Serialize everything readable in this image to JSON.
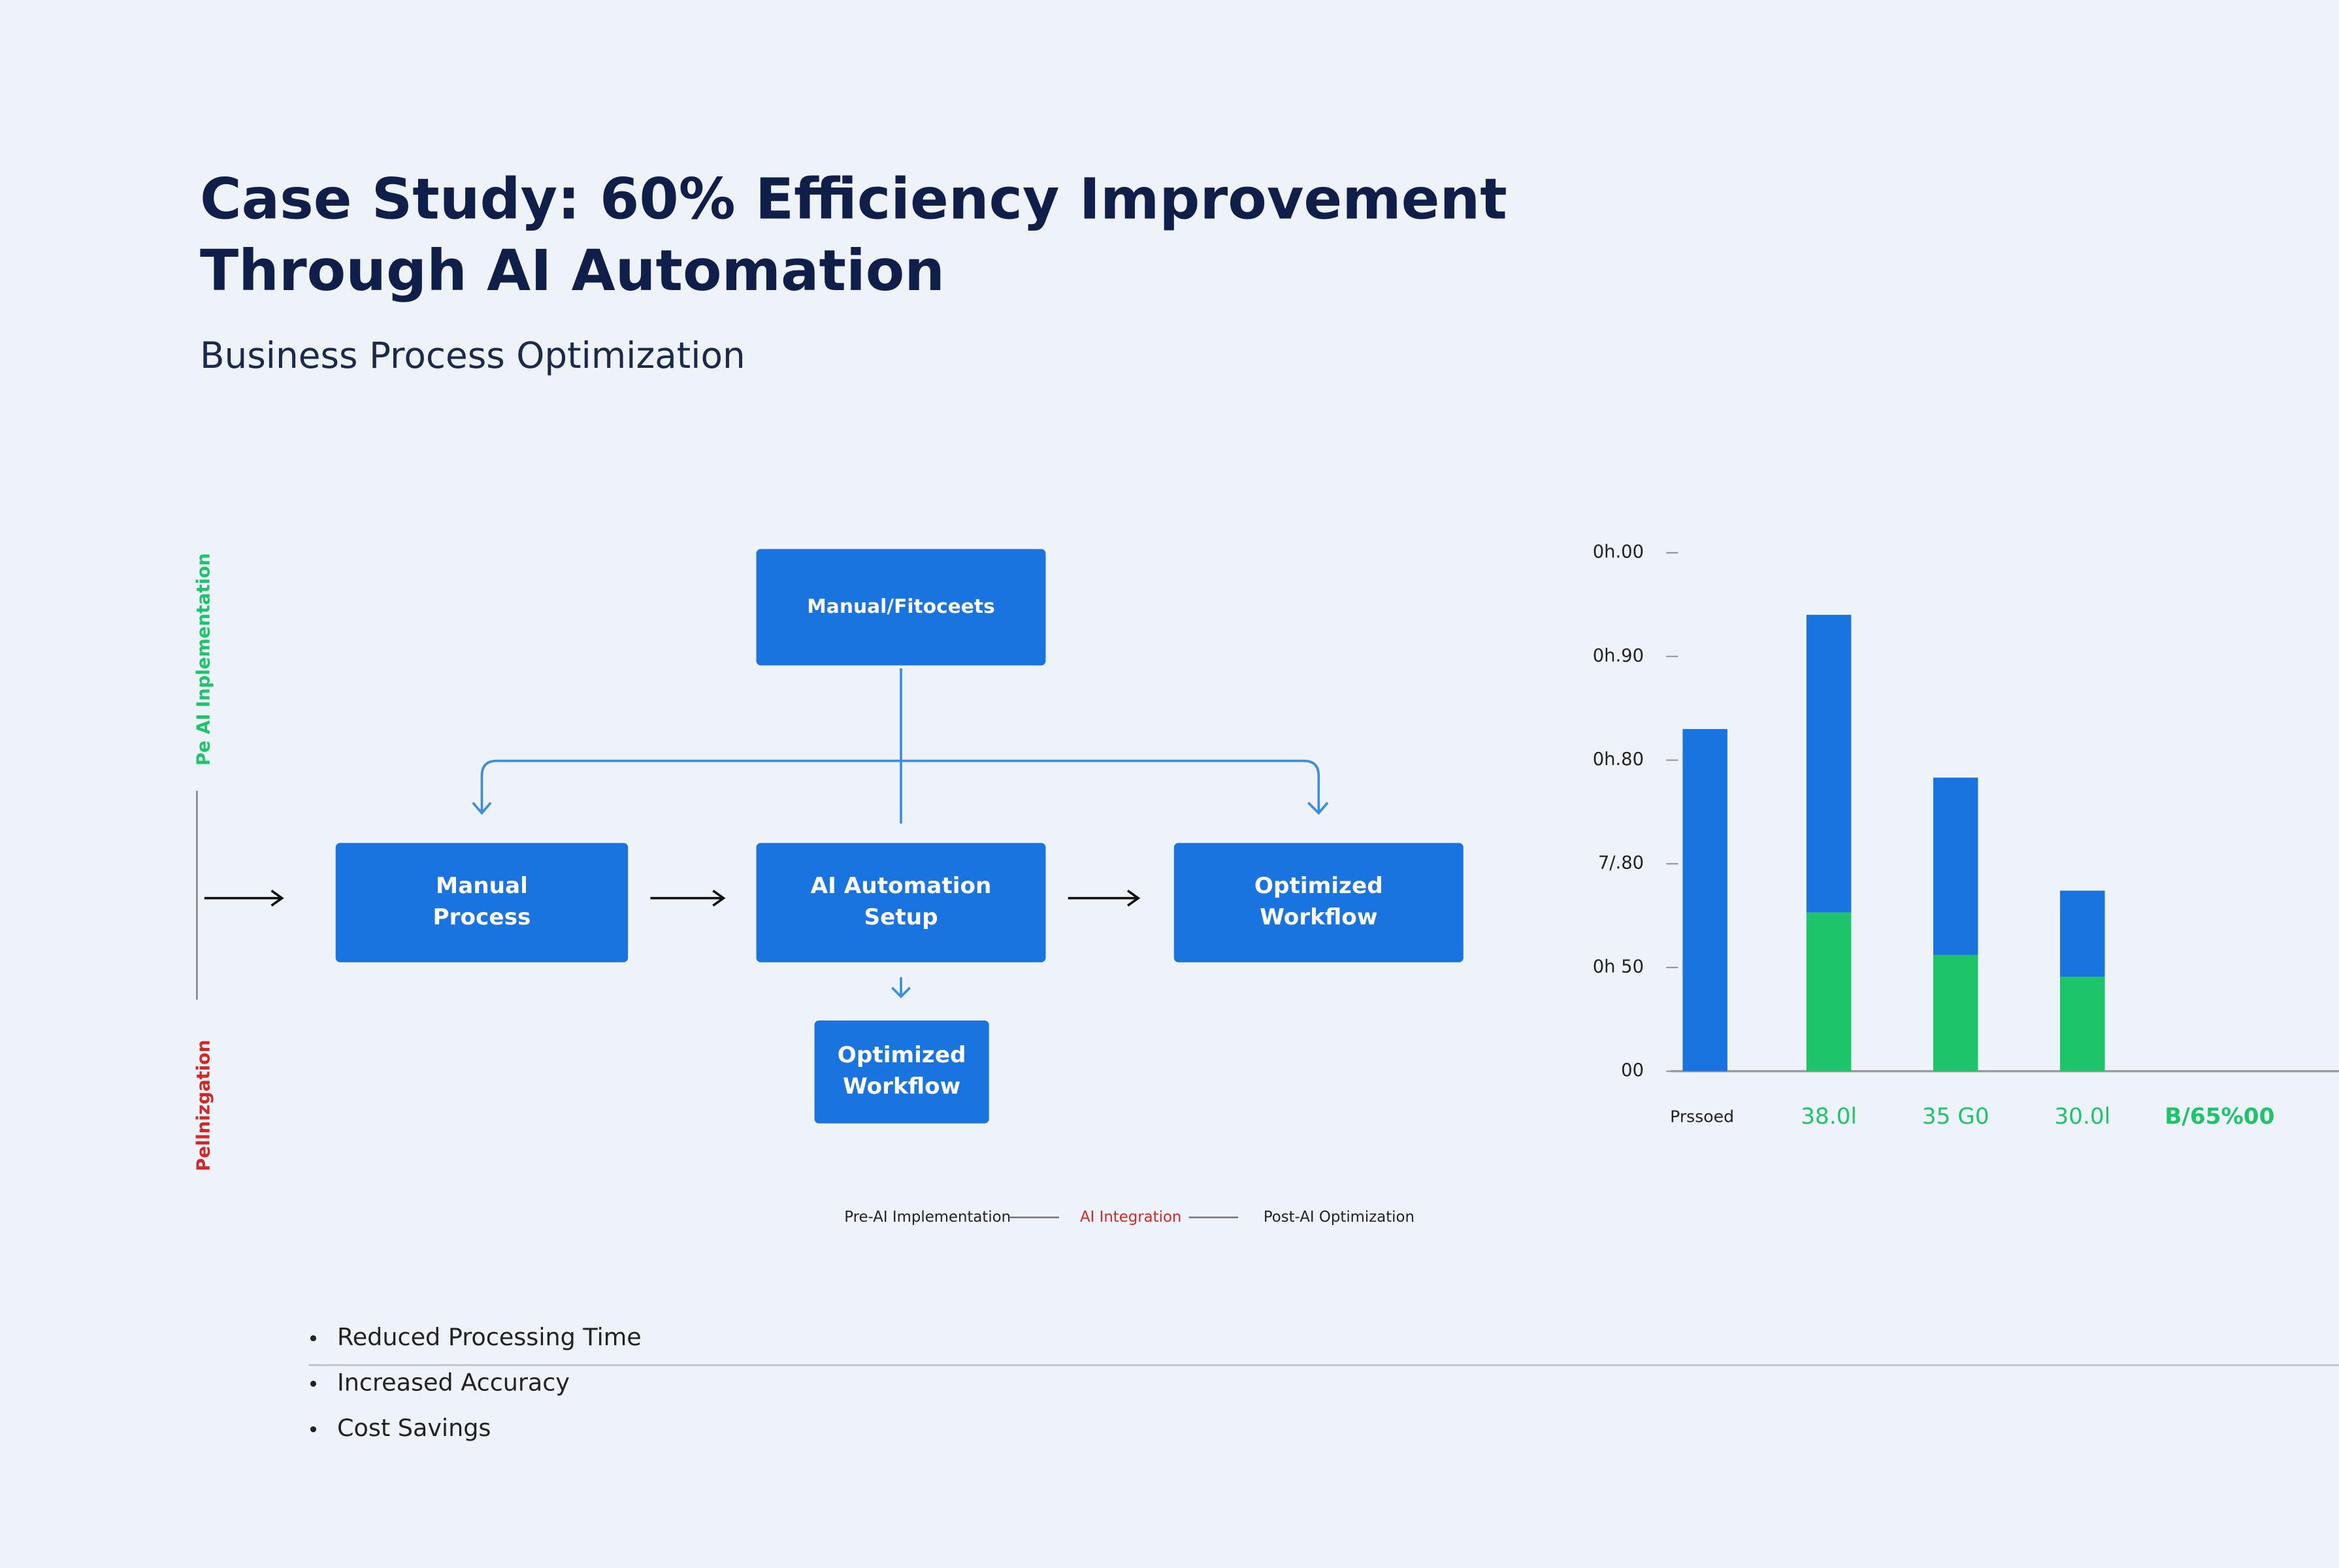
{
  "header": {
    "title_lines": [
      "Case Study: 60% Efficiency Improvement",
      "Through AI Automation"
    ],
    "subtitle": "Business Process Optimization"
  },
  "diagram": {
    "side_labels": [
      "Pe AI Inplementation",
      "Pellnizgation"
    ],
    "nodes": [
      {
        "lines": [
          "Manual/Fitoceets"
        ]
      },
      {
        "lines": [
          "Manual",
          "Process"
        ]
      },
      {
        "lines": [
          "AI Automation",
          "Setup"
        ]
      },
      {
        "lines": [
          "Optimized",
          "Workflow"
        ]
      },
      {
        "lines": [
          "Optimized",
          "Workflow"
        ]
      }
    ],
    "legend": [
      "Pre-AI Implementation",
      "AI Integration",
      "Post-AI Optimization"
    ]
  },
  "chart_data": {
    "type": "stacked_bar",
    "categories": [
      "Prssoed",
      "38.0l",
      "35 G0",
      "30.0l",
      "B/65%00"
    ],
    "series": [
      {
        "color": "#1ec46a",
        "values": [
          null,
          1.53,
          1.12,
          0.91,
          null
        ]
      },
      {
        "color": "#1a74e0",
        "values": [
          3.3,
          2.9,
          1.74,
          0.86,
          null
        ]
      }
    ],
    "ylim": [
      0,
      5
    ],
    "yticks": [
      {
        "value": 0,
        "label": "00"
      },
      {
        "value": 1,
        "label": "0h 50"
      },
      {
        "value": 2,
        "label": "7/.80"
      },
      {
        "value": 3,
        "label": "0h.80"
      },
      {
        "value": 4,
        "label": "0h.90"
      },
      {
        "value": 5,
        "label": "0h.00"
      }
    ]
  },
  "bullets": [
    "Reduced Processing Time",
    "Increased Accuracy",
    "Cost Savings"
  ]
}
